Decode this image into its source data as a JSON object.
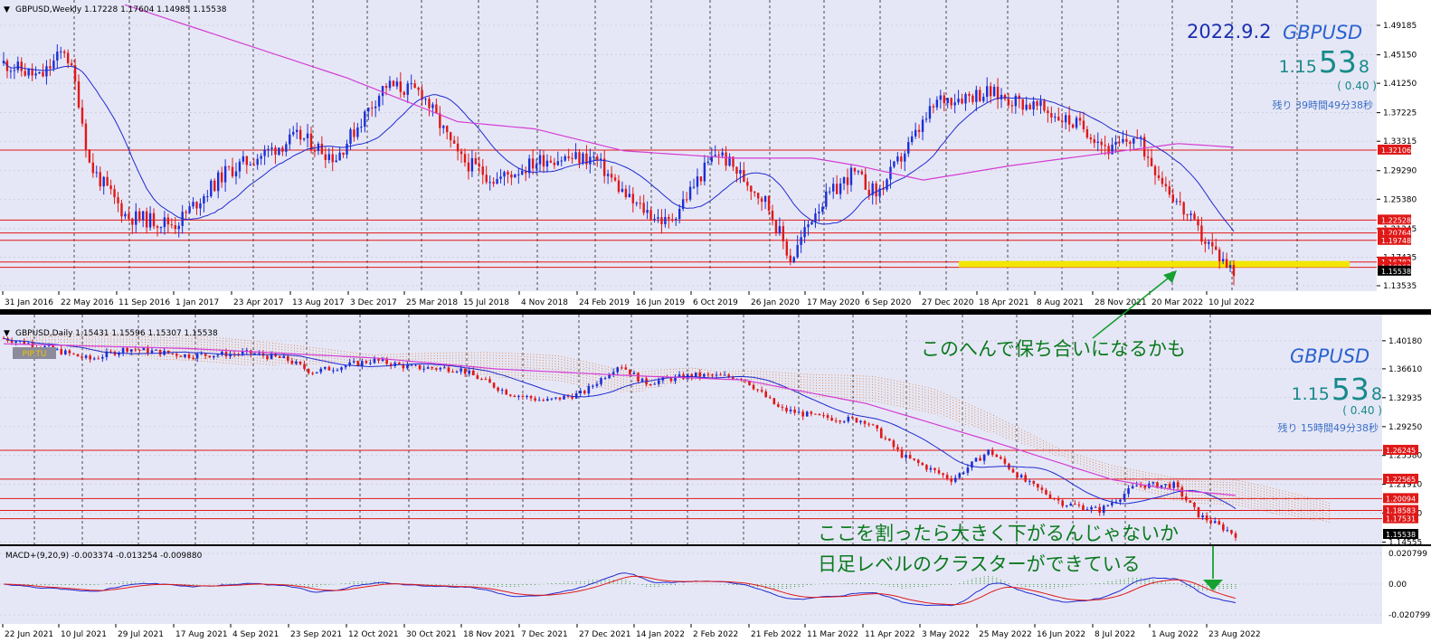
{
  "weekly": {
    "header": "GBPUSD,Weekly  1.17228 1.17604 1.14985 1.15538",
    "date_text": "2022.9.2",
    "symbol": "GBPUSD",
    "price_small": "1.15",
    "price_big": "53",
    "price_tail": "8",
    "change": "( 0.40 )",
    "remaining": "残り 39時間49分38秒",
    "price_ticks": [
      "1.49185",
      "1.45150",
      "1.41250",
      "1.37225",
      "1.33315",
      "1.29290",
      "1.25380",
      "1.21345",
      "1.17435",
      "1.13535"
    ],
    "x_labels": [
      "31 Jan 2016",
      "22 May 2016",
      "11 Sep 2016",
      "1 Jan 2017",
      "23 Apr 2017",
      "13 Aug 2017",
      "3 Dec 2017",
      "25 Mar 2018",
      "15 Jul 2018",
      "4 Nov 2018",
      "24 Feb 2019",
      "16 Jun 2019",
      "6 Oct 2019",
      "26 Jan 2020",
      "17 May 2020",
      "6 Sep 2020",
      "27 Dec 2020",
      "18 Apr 2021",
      "8 Aug 2021",
      "28 Nov 2021",
      "20 Mar 2022",
      "10 Jul 2022"
    ],
    "levels": [
      "1.32106",
      "1.22528",
      "1.20764",
      "1.19748",
      "1.16782",
      "1.16063"
    ],
    "current_tag": "1.15538",
    "highlight_color": "#f2e600"
  },
  "daily": {
    "header": "GBPUSD,Daily  1.15431 1.15596 1.15307 1.15538",
    "badge": "PIP.TU",
    "symbol": "GBPUSD",
    "price_small": "1.15",
    "price_big": "53",
    "price_tail": "8",
    "change": "( 0.40 )",
    "remaining": "残り 15時間49分38秒",
    "price_ticks": [
      "1.40180",
      "1.36610",
      "1.32935",
      "1.29250",
      "1.25580",
      "1.21910",
      "1.18250",
      "1.14555"
    ],
    "x_labels": [
      "22 Jun 2021",
      "10 Jul 2021",
      "29 Jul 2021",
      "17 Aug 2021",
      "4 Sep 2021",
      "23 Sep 2021",
      "12 Oct 2021",
      "30 Oct 2021",
      "18 Nov 2021",
      "7 Dec 2021",
      "27 Dec 2021",
      "14 Jan 2022",
      "2 Feb 2022",
      "21 Feb 2022",
      "11 Mar 2022",
      "11 Apr 2022",
      "3 May 2022",
      "25 May 2022",
      "16 Jun 2022",
      "8 Jul 2022",
      "1 Aug 2022",
      "23 Aug 2022"
    ],
    "levels": [
      "1.26245",
      "1.22565",
      "1.20094",
      "1.18583",
      "1.17531"
    ],
    "current_tag": "1.15538"
  },
  "macd": {
    "header": "MACD+(9,20,9) -0.003374 -0.013254 -0.009880",
    "ticks": [
      "0.020799",
      "0.00",
      "-0.020799"
    ]
  },
  "annotations": {
    "weekly_note": "このへんで保ち合いになるかも",
    "daily_note1": "ここを割ったら大きく下がるんじゃないか",
    "daily_note2": "日足レベルのクラスターができている"
  },
  "chart_data": [
    {
      "type": "candlestick",
      "title": "GBPUSD,Weekly",
      "ylim": [
        1.13535,
        1.49185
      ],
      "x": [
        "31 Jan 2016",
        "22 May 2016",
        "11 Sep 2016",
        "1 Jan 2017",
        "23 Apr 2017",
        "13 Aug 2017",
        "3 Dec 2017",
        "25 Mar 2018",
        "15 Jul 2018",
        "4 Nov 2018",
        "24 Feb 2019",
        "16 Jun 2019",
        "6 Oct 2019",
        "26 Jan 2020",
        "17 May 2020",
        "6 Sep 2020",
        "27 Dec 2020",
        "18 Apr 2021",
        "8 Aug 2021",
        "28 Nov 2021",
        "20 Mar 2022",
        "10 Jul 2022",
        "2 Sep 2022"
      ],
      "close": [
        1.44,
        1.41,
        1.3,
        1.22,
        1.29,
        1.3,
        1.35,
        1.41,
        1.31,
        1.28,
        1.32,
        1.25,
        1.29,
        1.3,
        1.23,
        1.29,
        1.37,
        1.39,
        1.38,
        1.33,
        1.31,
        1.2,
        1.155
      ],
      "horizontal_levels": [
        1.32106,
        1.22528,
        1.20764,
        1.19748,
        1.16782,
        1.16063
      ]
    },
    {
      "type": "candlestick",
      "title": "GBPUSD,Daily",
      "ylim": [
        1.145,
        1.412
      ],
      "x": [
        "22 Jun 2021",
        "10 Jul 2021",
        "29 Jul 2021",
        "17 Aug 2021",
        "4 Sep 2021",
        "23 Sep 2021",
        "12 Oct 2021",
        "30 Oct 2021",
        "18 Nov 2021",
        "7 Dec 2021",
        "27 Dec 2021",
        "14 Jan 2022",
        "2 Feb 2022",
        "21 Feb 2022",
        "11 Mar 2022",
        "11 Apr 2022",
        "3 May 2022",
        "25 May 2022",
        "16 Jun 2022",
        "8 Jul 2022",
        "1 Aug 2022",
        "23 Aug 2022",
        "2 Sep 2022"
      ],
      "close": [
        1.405,
        1.385,
        1.392,
        1.378,
        1.385,
        1.364,
        1.378,
        1.372,
        1.335,
        1.322,
        1.342,
        1.372,
        1.353,
        1.358,
        1.312,
        1.305,
        1.248,
        1.26,
        1.225,
        1.188,
        1.215,
        1.182,
        1.155
      ],
      "horizontal_levels": [
        1.26245,
        1.22565,
        1.20094,
        1.18583,
        1.17531
      ]
    },
    {
      "type": "line",
      "title": "MACD+(9,20,9)",
      "ylim": [
        -0.020799,
        0.020799
      ],
      "last_values": {
        "macd": -0.003374,
        "signal": -0.013254,
        "histogram": -0.00988
      }
    }
  ]
}
